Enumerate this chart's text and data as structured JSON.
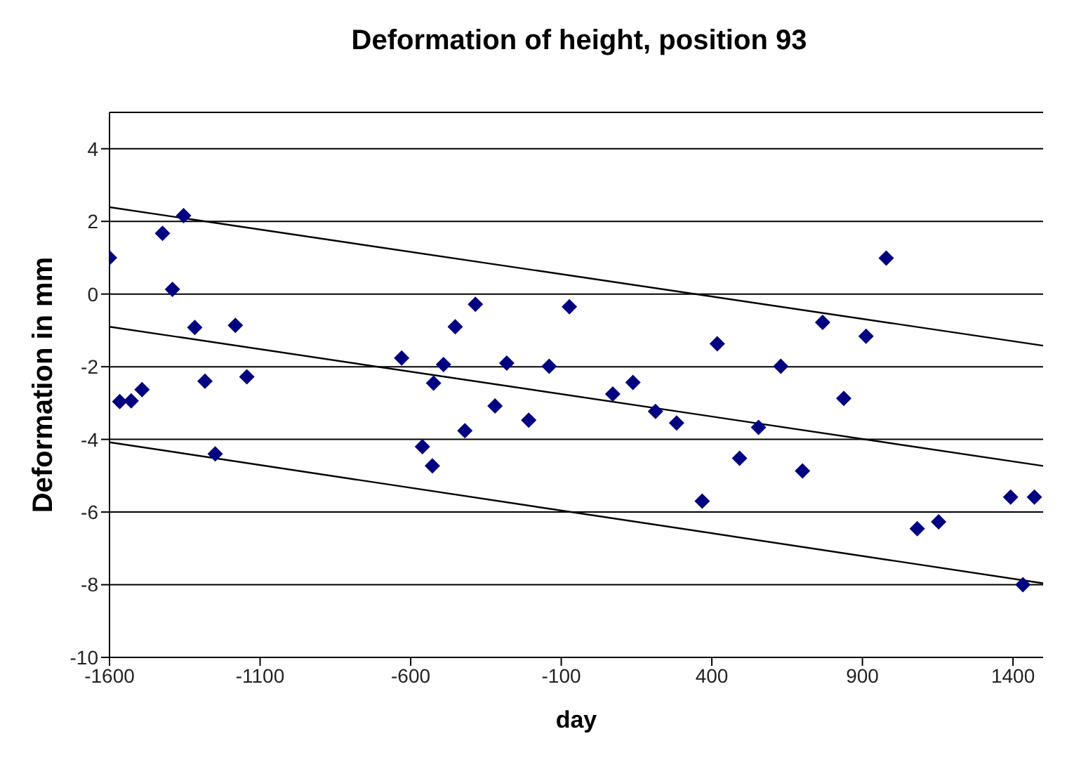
{
  "chart_data": {
    "type": "scatter",
    "title": "Deformation of height, position 93",
    "xlabel": "day",
    "ylabel": "Deformation in mm",
    "xlim": [
      -1600,
      1500
    ],
    "xticks": [
      -1600,
      -1100,
      -600,
      -100,
      400,
      900,
      1400
    ],
    "ylim": [
      -10,
      5
    ],
    "yticks": [
      -10,
      -8,
      -6,
      -4,
      -2,
      0,
      2,
      4
    ],
    "grid": "y",
    "legend": false,
    "marker": "diamond",
    "series": [
      {
        "color": "#000080",
        "x": [
          -1600,
          -1424,
          -1354,
          -1391,
          -1317,
          -1182,
          -1566,
          -1528,
          -1492,
          -1283,
          -1144,
          -1249,
          -630,
          -385,
          -452,
          -73,
          -491,
          -281,
          -140,
          -524,
          -320,
          -208,
          -420,
          -561,
          -528,
          71,
          138,
          213,
          283,
          979,
          768,
          912,
          418,
          629,
          838,
          555,
          492,
          701,
          368,
          1082,
          1153,
          1392,
          1471,
          1433
        ],
        "values": [
          1.0,
          1.67,
          2.16,
          0.13,
          -0.92,
          -0.86,
          -2.96,
          -2.94,
          -2.63,
          -2.4,
          -2.28,
          -4.4,
          -1.76,
          -0.28,
          -0.9,
          -0.35,
          -1.94,
          -1.9,
          -1.99,
          -2.45,
          -3.08,
          -3.47,
          -3.76,
          -4.2,
          -4.73,
          -2.75,
          -2.43,
          -3.23,
          -3.55,
          0.99,
          -0.78,
          -1.16,
          -1.37,
          -1.99,
          -2.87,
          -3.67,
          -4.52,
          -4.87,
          -5.7,
          -6.46,
          -6.27,
          -5.59,
          -5.59,
          -8.0
        ]
      },
      {
        "type": "line",
        "color": "#000000",
        "marker": "none",
        "line_style": "solid",
        "x": [
          -1600,
          1500
        ],
        "values": [
          2.39,
          -1.42
        ]
      },
      {
        "type": "line",
        "color": "#000000",
        "marker": "none",
        "line_style": "solid",
        "x": [
          -1600,
          1500
        ],
        "values": [
          -0.9,
          -4.73
        ]
      },
      {
        "type": "line",
        "color": "#000000",
        "marker": "none",
        "line_style": "solid",
        "x": [
          -1600,
          1500
        ],
        "values": [
          -4.08,
          -7.96
        ]
      }
    ]
  }
}
